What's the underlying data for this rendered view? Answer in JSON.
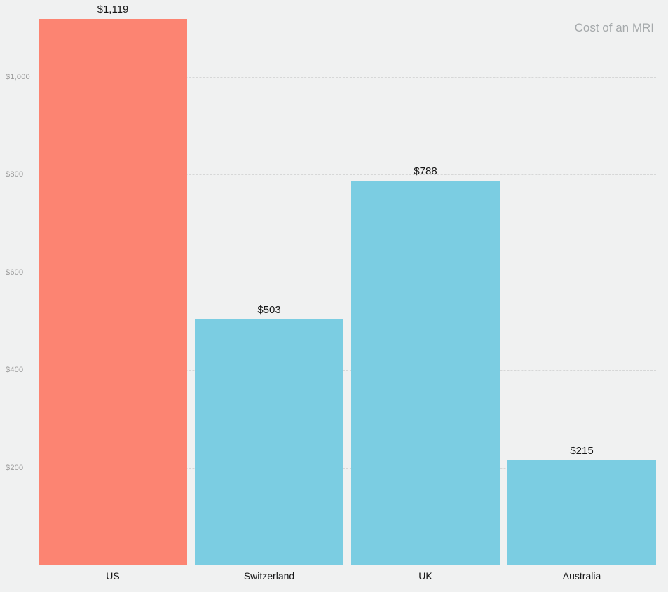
{
  "title": "Cost of an MRI",
  "colors": {
    "background": "#f0f1f1",
    "highlight_bar": "#fc8472",
    "default_bar": "#7bcde2",
    "gridline": "#d6d7d7",
    "axis_label": "#9a9a9a",
    "value_label": "#161616",
    "title": "#a5a9ab"
  },
  "chart_data": {
    "type": "bar",
    "title": "Cost of an MRI",
    "categories": [
      "US",
      "Switzerland",
      "UK",
      "Australia"
    ],
    "values": [
      1119,
      503,
      788,
      215
    ],
    "value_labels": [
      "$1,119",
      "$503",
      "$788",
      "$215"
    ],
    "bar_colors": [
      "#fc8472",
      "#7bcde2",
      "#7bcde2",
      "#7bcde2"
    ],
    "yticks": [
      200,
      400,
      600,
      800,
      1000
    ],
    "ytick_labels": [
      "$200",
      "$400",
      "$600",
      "$800",
      "$1,000"
    ],
    "ylim": [
      0,
      1158
    ],
    "xlabel": "",
    "ylabel": "",
    "grid": "dashed-horizontal",
    "legend": "none",
    "title_position": "top-right"
  }
}
